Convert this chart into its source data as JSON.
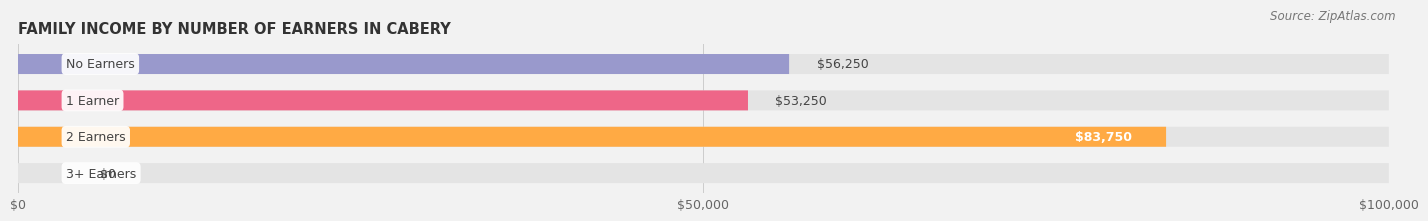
{
  "title": "FAMILY INCOME BY NUMBER OF EARNERS IN CABERY",
  "source": "Source: ZipAtlas.com",
  "categories": [
    "No Earners",
    "1 Earner",
    "2 Earners",
    "3+ Earners"
  ],
  "values": [
    56250,
    53250,
    83750,
    0
  ],
  "bar_colors": [
    "#9999cc",
    "#ee6688",
    "#ffaa44",
    "#ffbbbb"
  ],
  "xlim": [
    0,
    100000
  ],
  "xtick_values": [
    0,
    50000,
    100000
  ],
  "xtick_labels": [
    "$0",
    "$50,000",
    "$100,000"
  ],
  "background_color": "#f2f2f2",
  "bar_bg_color": "#e4e4e4",
  "title_fontsize": 10.5,
  "source_fontsize": 8.5,
  "tick_fontsize": 9,
  "label_fontsize": 9,
  "value_fontsize": 9
}
